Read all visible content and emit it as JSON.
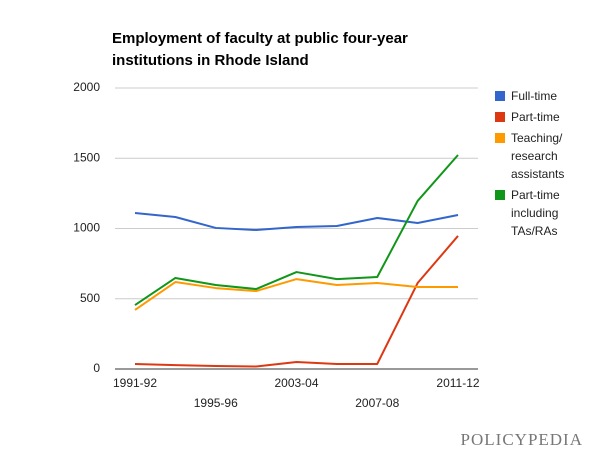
{
  "chart_data": {
    "type": "line",
    "title": "Employment of faculty at public four-year institutions in Rhode Island",
    "categories": [
      "1991-92",
      null,
      "1995-96",
      null,
      "2003-04",
      null,
      "2007-08",
      null,
      "2011-12"
    ],
    "series": [
      {
        "name": "Full-time",
        "color": "#3366cc",
        "values": [
          1110,
          1082,
          1004,
          989,
          1011,
          1018,
          1075,
          1039,
          1096
        ]
      },
      {
        "name": "Part-time",
        "color": "#dc3912",
        "values": [
          36,
          28,
          21,
          18,
          50,
          36,
          36,
          612,
          947
        ]
      },
      {
        "name": "Teaching/ research assistants",
        "color": "#ff9900",
        "values": [
          420,
          619,
          576,
          555,
          640,
          598,
          612,
          584,
          584
        ]
      },
      {
        "name": "Part-time including TAs/RAs",
        "color": "#109618",
        "values": [
          455,
          648,
          598,
          569,
          690,
          640,
          655,
          1196,
          1523
        ]
      }
    ],
    "ylim": [
      0,
      2000
    ],
    "yticks": [
      0,
      500,
      1000,
      1500,
      2000
    ],
    "grid": true,
    "legend": "right",
    "logo": "POLICYPEDIA"
  }
}
